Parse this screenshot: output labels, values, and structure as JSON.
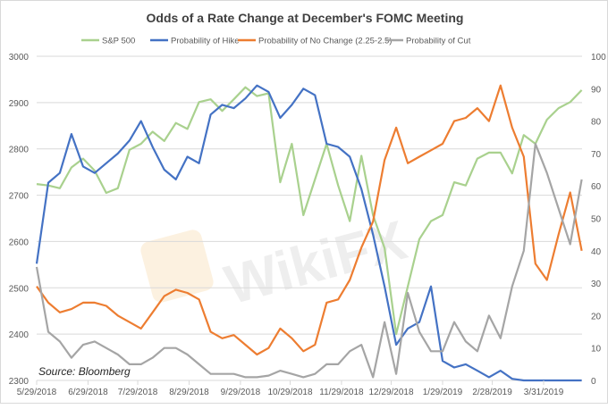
{
  "chart_data": {
    "type": "line",
    "title": "Odds of a Rate Change at December's FOMC Meeting",
    "source_note": "Source: Bloomberg",
    "watermark": "WikiFX",
    "legend_position": "top",
    "grid": true,
    "xlim": [
      "2018-05-29",
      "2019-04-30"
    ],
    "x_tick_labels": [
      "5/29/2018",
      "6/29/2018",
      "7/29/2018",
      "8/29/2018",
      "9/29/2018",
      "10/29/2018",
      "11/29/2018",
      "12/29/2018",
      "1/29/2019",
      "2/28/2019",
      "3/31/2019"
    ],
    "x_tick_dates": [
      "2018-05-29",
      "2018-06-29",
      "2018-07-29",
      "2018-08-29",
      "2018-09-29",
      "2018-10-29",
      "2018-11-29",
      "2018-12-29",
      "2019-01-29",
      "2019-02-28",
      "2019-03-31"
    ],
    "y_left": {
      "lim": [
        2300,
        3000
      ],
      "ticks": [
        "2300",
        "2400",
        "2500",
        "2600",
        "2700",
        "2800",
        "2900",
        "3000"
      ]
    },
    "y_right": {
      "lim": [
        0,
        100
      ],
      "ticks": [
        "0",
        "10",
        "20",
        "30",
        "40",
        "50",
        "60",
        "70",
        "80",
        "90",
        "100"
      ]
    },
    "x": [
      "2018-05-29",
      "2018-06-05",
      "2018-06-12",
      "2018-06-19",
      "2018-06-26",
      "2018-07-03",
      "2018-07-10",
      "2018-07-17",
      "2018-07-24",
      "2018-07-31",
      "2018-08-07",
      "2018-08-14",
      "2018-08-21",
      "2018-08-28",
      "2018-09-04",
      "2018-09-11",
      "2018-09-18",
      "2018-09-25",
      "2018-10-02",
      "2018-10-09",
      "2018-10-16",
      "2018-10-23",
      "2018-10-30",
      "2018-11-06",
      "2018-11-13",
      "2018-11-20",
      "2018-11-27",
      "2018-12-04",
      "2018-12-11",
      "2018-12-18",
      "2018-12-25",
      "2019-01-01",
      "2019-01-08",
      "2019-01-15",
      "2019-01-22",
      "2019-01-29",
      "2019-02-05",
      "2019-02-12",
      "2019-02-19",
      "2019-02-26",
      "2019-03-05",
      "2019-03-12",
      "2019-03-19",
      "2019-03-26",
      "2019-04-02",
      "2019-04-09",
      "2019-04-16",
      "2019-04-23"
    ],
    "series": [
      {
        "name": "S&P 500",
        "axis": "left",
        "color": "#a9d18e",
        "values": [
          2724,
          2721,
          2715,
          2760,
          2779,
          2753,
          2705,
          2715,
          2798,
          2811,
          2837,
          2817,
          2856,
          2843,
          2901,
          2907,
          2882,
          2907,
          2933,
          2914,
          2920,
          2728,
          2811,
          2657,
          2734,
          2811,
          2721,
          2644,
          2785,
          2657,
          2586,
          2400,
          2503,
          2605,
          2644,
          2657,
          2728,
          2721,
          2779,
          2792,
          2792,
          2747,
          2830,
          2811,
          2863,
          2888,
          2901,
          2927
        ]
      },
      {
        "name": "Probability of Hike",
        "axis": "right",
        "color": "#4472c4",
        "values": [
          36,
          61,
          64,
          76,
          66,
          64,
          67,
          70,
          74,
          80,
          72,
          65,
          62,
          69,
          67,
          82,
          85,
          84,
          87,
          91,
          89,
          81,
          85,
          90,
          88,
          73,
          72,
          69,
          59,
          45,
          29,
          11,
          16,
          18,
          29,
          6,
          4,
          5,
          3,
          1,
          3,
          0.5,
          0,
          0,
          0,
          0,
          0,
          0
        ]
      },
      {
        "name": "Probability of No Change (2.25-2.5)",
        "axis": "right",
        "color": "#ed7d31",
        "values": [
          29,
          24,
          21,
          22,
          24,
          24,
          23,
          20,
          18,
          16,
          21,
          26,
          28,
          27,
          25,
          15,
          13,
          14,
          11,
          8,
          10,
          16,
          13,
          9,
          11,
          24,
          25,
          31,
          41,
          49,
          68,
          78,
          67,
          69,
          71,
          73,
          80,
          81,
          84,
          80,
          91,
          78,
          69,
          36,
          31,
          45,
          58,
          40
        ]
      },
      {
        "name": "Probability of Cut",
        "axis": "right",
        "color": "#a5a5a5",
        "values": [
          35,
          15,
          12,
          7,
          11,
          12,
          10,
          8,
          5,
          5,
          7,
          10,
          10,
          8,
          5,
          2,
          2,
          2,
          1,
          1,
          1.5,
          3,
          2,
          1,
          2,
          5,
          5,
          9,
          11,
          1,
          18,
          2,
          27,
          15,
          9,
          9,
          18,
          12,
          9,
          20,
          13,
          29,
          40,
          73,
          64,
          53,
          42,
          62
        ]
      }
    ]
  }
}
